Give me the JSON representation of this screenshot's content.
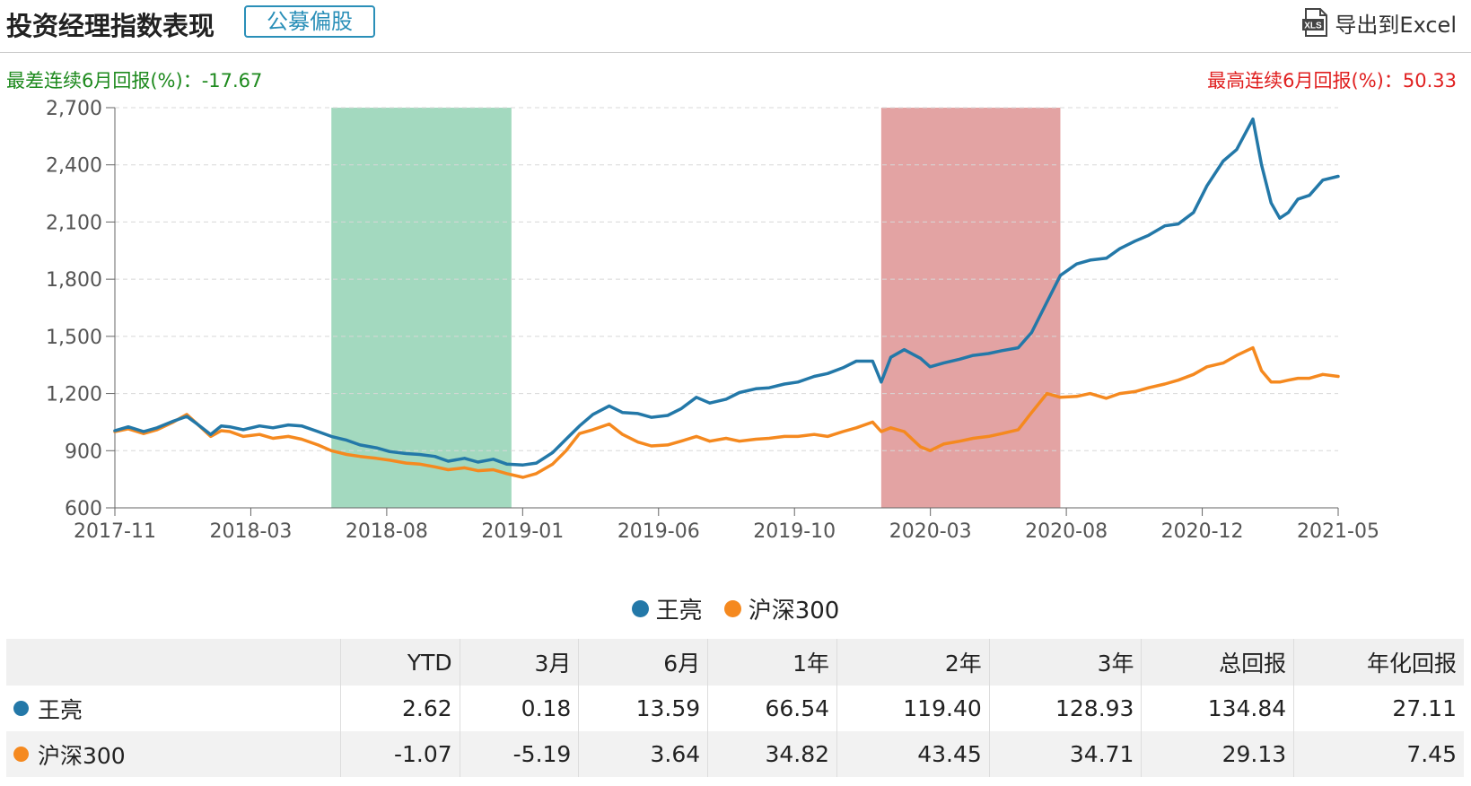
{
  "header": {
    "title": "投资经理指数表现",
    "tag": "公募偏股",
    "export_label": "导出到Excel",
    "export_icon": "xls-icon"
  },
  "summary": {
    "worst_label": "最差连续6月回报(%)：-17.67",
    "best_label": "最高连续6月回报(%)：50.33"
  },
  "colors": {
    "manager": "#2378a8",
    "index": "#f5891f",
    "worst_band": "#a3d9bf",
    "best_band": "#e3a3a3",
    "worst_text": "#1e8a1e",
    "best_text": "#e02020"
  },
  "chart_data": {
    "type": "line",
    "ylim": [
      600,
      2700
    ],
    "yticks": [
      600,
      900,
      1200,
      1500,
      1800,
      2100,
      2400,
      2700
    ],
    "ytick_labels": [
      "600",
      "900",
      "1,200",
      "1,500",
      "1,800",
      "2,100",
      "2,400",
      "2,700"
    ],
    "xlim": [
      "2017-11",
      "2021-05"
    ],
    "xtick_labels": [
      "2017-11",
      "2018-03",
      "2018-08",
      "2019-01",
      "2019-06",
      "2019-10",
      "2020-03",
      "2020-08",
      "2020-12",
      "2021-05"
    ],
    "grid": true,
    "legend_position": "bottom",
    "bands": [
      {
        "kind": "worst",
        "start": "2018-06-15",
        "end": "2018-12-20"
      },
      {
        "kind": "best",
        "start": "2020-01-10",
        "end": "2020-07-15"
      }
    ],
    "series": [
      {
        "name": "王亮",
        "x": [
          "2017-11-01",
          "2017-11-15",
          "2017-12-01",
          "2017-12-15",
          "2018-01-01",
          "2018-01-15",
          "2018-01-26",
          "2018-02-09",
          "2018-02-20",
          "2018-03-01",
          "2018-03-15",
          "2018-04-01",
          "2018-04-15",
          "2018-05-01",
          "2018-05-15",
          "2018-06-01",
          "2018-06-15",
          "2018-07-01",
          "2018-07-15",
          "2018-08-01",
          "2018-08-15",
          "2018-09-01",
          "2018-09-15",
          "2018-10-01",
          "2018-10-15",
          "2018-11-01",
          "2018-11-15",
          "2018-12-01",
          "2018-12-15",
          "2019-01-01",
          "2019-01-15",
          "2019-02-01",
          "2019-02-15",
          "2019-03-01",
          "2019-03-15",
          "2019-04-01",
          "2019-04-15",
          "2019-05-01",
          "2019-05-15",
          "2019-06-01",
          "2019-06-15",
          "2019-07-01",
          "2019-07-15",
          "2019-08-01",
          "2019-08-15",
          "2019-09-01",
          "2019-09-15",
          "2019-10-01",
          "2019-10-15",
          "2019-11-01",
          "2019-11-15",
          "2019-12-01",
          "2019-12-15",
          "2020-01-01",
          "2020-01-10",
          "2020-01-20",
          "2020-02-03",
          "2020-02-20",
          "2020-03-01",
          "2020-03-15",
          "2020-04-01",
          "2020-04-15",
          "2020-05-01",
          "2020-05-15",
          "2020-06-01",
          "2020-06-15",
          "2020-07-01",
          "2020-07-15",
          "2020-08-01",
          "2020-08-15",
          "2020-09-01",
          "2020-09-15",
          "2020-10-01",
          "2020-10-15",
          "2020-11-01",
          "2020-11-15",
          "2020-12-01",
          "2020-12-15",
          "2021-01-01",
          "2021-01-15",
          "2021-02-01",
          "2021-02-10",
          "2021-02-20",
          "2021-03-01",
          "2021-03-10",
          "2021-03-20",
          "2021-04-01",
          "2021-04-15",
          "2021-05-01"
        ],
        "values": [
          1005,
          1025,
          1000,
          1020,
          1055,
          1080,
          1040,
          985,
          1030,
          1025,
          1010,
          1030,
          1020,
          1035,
          1030,
          1000,
          975,
          955,
          930,
          915,
          895,
          885,
          880,
          870,
          845,
          860,
          840,
          855,
          830,
          825,
          835,
          890,
          960,
          1030,
          1090,
          1135,
          1100,
          1095,
          1075,
          1085,
          1120,
          1180,
          1150,
          1170,
          1205,
          1225,
          1230,
          1250,
          1260,
          1290,
          1305,
          1335,
          1370,
          1370,
          1260,
          1390,
          1430,
          1385,
          1340,
          1360,
          1380,
          1400,
          1410,
          1425,
          1440,
          1520,
          1680,
          1820,
          1880,
          1900,
          1910,
          1960,
          2000,
          2030,
          2080,
          2090,
          2150,
          2290,
          2420,
          2480,
          2640,
          2400,
          2200,
          2120,
          2150,
          2220,
          2240,
          2320,
          2340
        ]
      },
      {
        "name": "沪深300",
        "x": [
          "2017-11-01",
          "2017-11-15",
          "2017-12-01",
          "2017-12-15",
          "2018-01-01",
          "2018-01-15",
          "2018-01-26",
          "2018-02-09",
          "2018-02-20",
          "2018-03-01",
          "2018-03-15",
          "2018-04-01",
          "2018-04-15",
          "2018-05-01",
          "2018-05-15",
          "2018-06-01",
          "2018-06-15",
          "2018-07-01",
          "2018-07-15",
          "2018-08-01",
          "2018-08-15",
          "2018-09-01",
          "2018-09-15",
          "2018-10-01",
          "2018-10-15",
          "2018-11-01",
          "2018-11-15",
          "2018-12-01",
          "2018-12-15",
          "2019-01-01",
          "2019-01-15",
          "2019-02-01",
          "2019-02-15",
          "2019-03-01",
          "2019-03-15",
          "2019-04-01",
          "2019-04-15",
          "2019-05-01",
          "2019-05-15",
          "2019-06-01",
          "2019-06-15",
          "2019-07-01",
          "2019-07-15",
          "2019-08-01",
          "2019-08-15",
          "2019-09-01",
          "2019-09-15",
          "2019-10-01",
          "2019-10-15",
          "2019-11-01",
          "2019-11-15",
          "2019-12-01",
          "2019-12-15",
          "2020-01-01",
          "2020-01-10",
          "2020-01-20",
          "2020-02-03",
          "2020-02-20",
          "2020-03-01",
          "2020-03-15",
          "2020-04-01",
          "2020-04-15",
          "2020-05-01",
          "2020-05-15",
          "2020-06-01",
          "2020-06-15",
          "2020-07-01",
          "2020-07-15",
          "2020-08-01",
          "2020-08-15",
          "2020-09-01",
          "2020-09-15",
          "2020-10-01",
          "2020-10-15",
          "2020-11-01",
          "2020-11-15",
          "2020-12-01",
          "2020-12-15",
          "2021-01-01",
          "2021-01-15",
          "2021-02-01",
          "2021-02-10",
          "2021-02-20",
          "2021-03-01",
          "2021-03-10",
          "2021-03-20",
          "2021-04-01",
          "2021-04-15",
          "2021-05-01"
        ],
        "values": [
          1000,
          1015,
          990,
          1010,
          1050,
          1090,
          1040,
          975,
          1005,
          1000,
          975,
          985,
          965,
          975,
          960,
          930,
          900,
          880,
          870,
          860,
          850,
          835,
          830,
          815,
          800,
          810,
          795,
          800,
          780,
          760,
          780,
          830,
          900,
          990,
          1010,
          1040,
          985,
          945,
          925,
          930,
          950,
          975,
          950,
          965,
          950,
          960,
          965,
          975,
          975,
          985,
          975,
          1000,
          1020,
          1050,
          1000,
          1020,
          1000,
          920,
          900,
          935,
          950,
          965,
          975,
          990,
          1010,
          1100,
          1200,
          1180,
          1185,
          1200,
          1175,
          1200,
          1210,
          1230,
          1250,
          1270,
          1300,
          1340,
          1360,
          1400,
          1440,
          1320,
          1260,
          1260,
          1270,
          1280,
          1280,
          1300,
          1290
        ]
      }
    ]
  },
  "legend": {
    "items": [
      {
        "label": "王亮"
      },
      {
        "label": "沪深300"
      }
    ]
  },
  "table": {
    "headers": [
      "",
      "YTD",
      "3月",
      "6月",
      "1年",
      "2年",
      "3年",
      "总回报",
      "年化回报"
    ],
    "rows": [
      {
        "name": "王亮",
        "values": [
          "2.62",
          "0.18",
          "13.59",
          "66.54",
          "119.40",
          "128.93",
          "134.84",
          "27.11"
        ]
      },
      {
        "name": "沪深300",
        "values": [
          "-1.07",
          "-5.19",
          "3.64",
          "34.82",
          "43.45",
          "34.71",
          "29.13",
          "7.45"
        ]
      }
    ]
  }
}
